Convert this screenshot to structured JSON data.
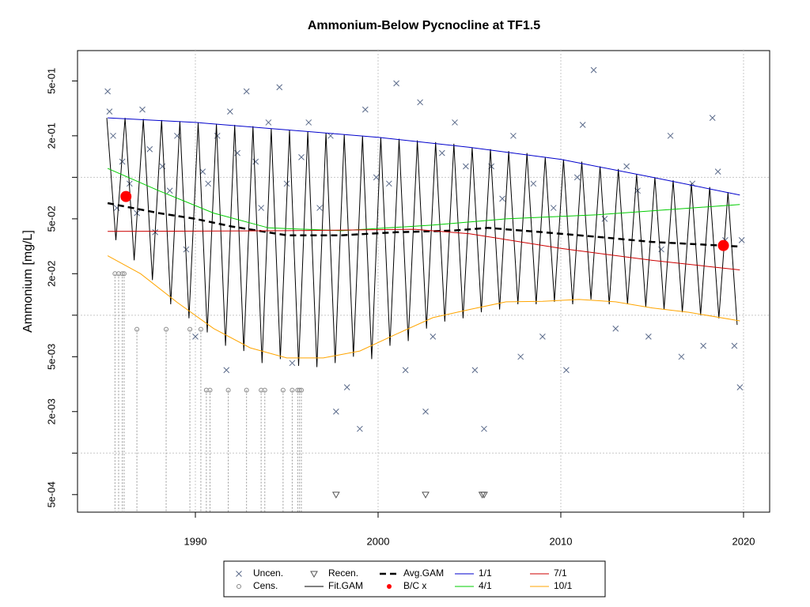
{
  "chart_data": {
    "type": "scatter",
    "title": "Ammonium-Below Pycnocline at TF1.5",
    "y_label": "Ammonium [mg/L]",
    "y_log": true,
    "xlim": [
      1983.55,
      2021.43
    ],
    "ylim": [
      0.000373,
      0.83
    ],
    "xticks": [
      1990,
      2000,
      2010,
      2020
    ],
    "yticks": [
      {
        "value": 0.0005,
        "label": "5e-04"
      },
      {
        "value": 0.002,
        "label": "2e-03"
      },
      {
        "value": 0.005,
        "label": "5e-03"
      },
      {
        "value": 0.02,
        "label": "2e-02"
      },
      {
        "value": 0.05,
        "label": "5e-02"
      },
      {
        "value": 0.2,
        "label": "2e-01"
      },
      {
        "value": 0.5,
        "label": "5e-01"
      }
    ],
    "ygrid": [
      0.001,
      0.01,
      0.1
    ],
    "grid": true,
    "legend": "bottom",
    "series": [
      {
        "name": "Uncen.",
        "color": "#5a6a8a",
        "marker": "x",
        "x": [
          1985.2,
          1985.3,
          1985.5,
          1985.7,
          1986.0,
          1986.4,
          1986.8,
          1987.1,
          1987.5,
          1987.8,
          1988.2,
          1988.6,
          1989.0,
          1989.5,
          1990.0,
          1990.4,
          1990.7,
          1991.2,
          1991.7,
          1991.9,
          1992.3,
          1992.8,
          1993.3,
          1993.6,
          1994.0,
          1994.6,
          1995.0,
          1995.3,
          1995.8,
          1996.2,
          1996.8,
          1997.4,
          1997.7,
          1998.3,
          1999.0,
          1999.3,
          1999.9,
          2000.6,
          2001.0,
          2001.5,
          2002.3,
          2002.6,
          2003.0,
          2003.5,
          2004.2,
          2004.8,
          2005.3,
          2005.8,
          2006.2,
          2006.8,
          2007.4,
          2007.8,
          2008.5,
          2009.0,
          2009.6,
          2010.3,
          2010.9,
          2011.2,
          2011.8,
          2012.4,
          2013.0,
          2013.6,
          2014.2,
          2014.8,
          2015.5,
          2016.0,
          2016.6,
          2017.2,
          2017.8,
          2018.3,
          2018.6,
          2019.0,
          2019.5,
          2019.8,
          2019.9
        ],
        "values": [
          0.42,
          0.3,
          0.2,
          0.06,
          0.13,
          0.09,
          0.055,
          0.31,
          0.16,
          0.04,
          0.12,
          0.08,
          0.2,
          0.03,
          0.007,
          0.11,
          0.09,
          0.2,
          0.004,
          0.3,
          0.15,
          0.42,
          0.13,
          0.06,
          0.25,
          0.45,
          0.09,
          0.0045,
          0.14,
          0.25,
          0.06,
          0.2,
          0.002,
          0.003,
          0.0015,
          0.31,
          0.1,
          0.09,
          0.48,
          0.004,
          0.35,
          0.002,
          0.007,
          0.15,
          0.25,
          0.12,
          0.004,
          0.0015,
          0.12,
          0.07,
          0.2,
          0.005,
          0.09,
          0.007,
          0.06,
          0.004,
          0.1,
          0.24,
          0.6,
          0.05,
          0.008,
          0.12,
          0.08,
          0.007,
          0.03,
          0.2,
          0.005,
          0.09,
          0.006,
          0.27,
          0.11,
          0.035,
          0.006,
          0.003,
          0.035
        ]
      },
      {
        "name": "Cens.",
        "color": "#888888",
        "marker": "circle",
        "x": [
          1985.6,
          1985.8,
          1986.0,
          1986.1,
          1986.8,
          1988.4,
          1989.7,
          1990.3,
          1990.6,
          1990.8,
          1991.8,
          1992.8,
          1993.6,
          1993.8,
          1994.8,
          1995.3,
          1995.6,
          1995.7,
          1995.8
        ],
        "values": [
          0.02,
          0.02,
          0.02,
          0.02,
          0.0079,
          0.0079,
          0.0079,
          0.0079,
          0.00286,
          0.00286,
          0.00286,
          0.00286,
          0.00286,
          0.00286,
          0.00286,
          0.00286,
          0.00286,
          0.00286,
          0.00286
        ]
      },
      {
        "name": "Recen.",
        "color": "#555555",
        "marker": "triangle",
        "x": [
          1997.7,
          2002.6,
          2005.7,
          2005.8
        ],
        "values": [
          0.0005,
          0.0005,
          0.0005,
          0.0005
        ]
      },
      {
        "name": "Fit.GAM",
        "color": "#000000",
        "line": "solid",
        "x": [
          1985.15,
          1985.65,
          1986.15,
          1986.65,
          1987.15,
          1987.65,
          1988.15,
          1988.65,
          1989.15,
          1989.65,
          1990.15,
          1990.65,
          1991.15,
          1991.65,
          1992.15,
          1992.65,
          1993.15,
          1993.65,
          1994.15,
          1994.65,
          1995.15,
          1995.65,
          1996.15,
          1996.65,
          1997.15,
          1997.65,
          1998.15,
          1998.65,
          1999.15,
          1999.65,
          2000.15,
          2000.65,
          2001.15,
          2001.65,
          2002.15,
          2002.65,
          2003.15,
          2003.65,
          2004.15,
          2004.65,
          2005.15,
          2005.65,
          2006.15,
          2006.65,
          2007.15,
          2007.65,
          2008.15,
          2008.65,
          2009.15,
          2009.65,
          2010.15,
          2010.65,
          2011.15,
          2011.65,
          2012.15,
          2012.65,
          2013.15,
          2013.65,
          2014.15,
          2014.65,
          2015.15,
          2015.65,
          2016.15,
          2016.65,
          2017.15,
          2017.65,
          2018.15,
          2018.65,
          2019.15,
          2019.65
        ],
        "values": [
          0.27,
          0.035,
          0.27,
          0.025,
          0.265,
          0.018,
          0.26,
          0.012,
          0.255,
          0.0095,
          0.25,
          0.0075,
          0.245,
          0.006,
          0.24,
          0.0055,
          0.235,
          0.0045,
          0.225,
          0.0048,
          0.22,
          0.0043,
          0.215,
          0.0042,
          0.21,
          0.0045,
          0.205,
          0.005,
          0.2,
          0.0048,
          0.195,
          0.006,
          0.19,
          0.0065,
          0.185,
          0.008,
          0.18,
          0.009,
          0.175,
          0.0095,
          0.165,
          0.0105,
          0.16,
          0.011,
          0.155,
          0.012,
          0.15,
          0.012,
          0.14,
          0.0125,
          0.135,
          0.012,
          0.13,
          0.013,
          0.12,
          0.012,
          0.115,
          0.012,
          0.105,
          0.0115,
          0.1,
          0.011,
          0.095,
          0.0105,
          0.09,
          0.01,
          0.085,
          0.0095,
          0.078,
          0.0085
        ]
      },
      {
        "name": "Avg.GAM",
        "color": "#000000",
        "line": "dashed",
        "x": [
          1985.2,
          1988,
          1990,
          1992,
          1995,
          1998,
          2001,
          2004,
          2006,
          2009,
          2012,
          2015,
          2019.8
        ],
        "values": [
          0.065,
          0.055,
          0.05,
          0.044,
          0.038,
          0.038,
          0.04,
          0.041,
          0.043,
          0.04,
          0.037,
          0.034,
          0.0315
        ]
      },
      {
        "name": "B/C x",
        "color": "#ff0000",
        "marker": "dot",
        "x": [
          1986.2,
          2018.9
        ],
        "values": [
          0.0726,
          0.032
        ]
      },
      {
        "name": "1/1",
        "color": "#0000cc",
        "line": "solid",
        "x": [
          1985.2,
          1990,
          2000,
          2005,
          2010,
          2015,
          2019.8
        ],
        "values": [
          0.27,
          0.25,
          0.195,
          0.165,
          0.135,
          0.1,
          0.0745
        ]
      },
      {
        "name": "4/1",
        "color": "#00cc00",
        "line": "solid",
        "x": [
          1985.2,
          1988,
          1991,
          1994,
          1998,
          2003,
          2007,
          2012,
          2019.8
        ],
        "values": [
          0.116,
          0.08,
          0.055,
          0.043,
          0.041,
          0.045,
          0.05,
          0.0535,
          0.0635
        ]
      },
      {
        "name": "7/1",
        "color": "#cc0000",
        "line": "solid",
        "x": [
          1985.2,
          1995,
          2002,
          2005,
          2010,
          2015,
          2019.8
        ],
        "values": [
          0.0405,
          0.041,
          0.042,
          0.039,
          0.0305,
          0.025,
          0.0213
        ]
      },
      {
        "name": "10/1",
        "color": "#ffa500",
        "line": "solid",
        "x": [
          1985.2,
          1987,
          1989,
          1991,
          1993,
          1995,
          1997,
          1999,
          2001,
          2003,
          2005,
          2007,
          2009,
          2011,
          2013,
          2015,
          2017,
          2019.8
        ],
        "values": [
          0.027,
          0.02,
          0.0124,
          0.008,
          0.0058,
          0.0049,
          0.0049,
          0.0055,
          0.0073,
          0.0096,
          0.011,
          0.0125,
          0.0126,
          0.013,
          0.0125,
          0.0113,
          0.0105,
          0.0091
        ]
      }
    ]
  }
}
